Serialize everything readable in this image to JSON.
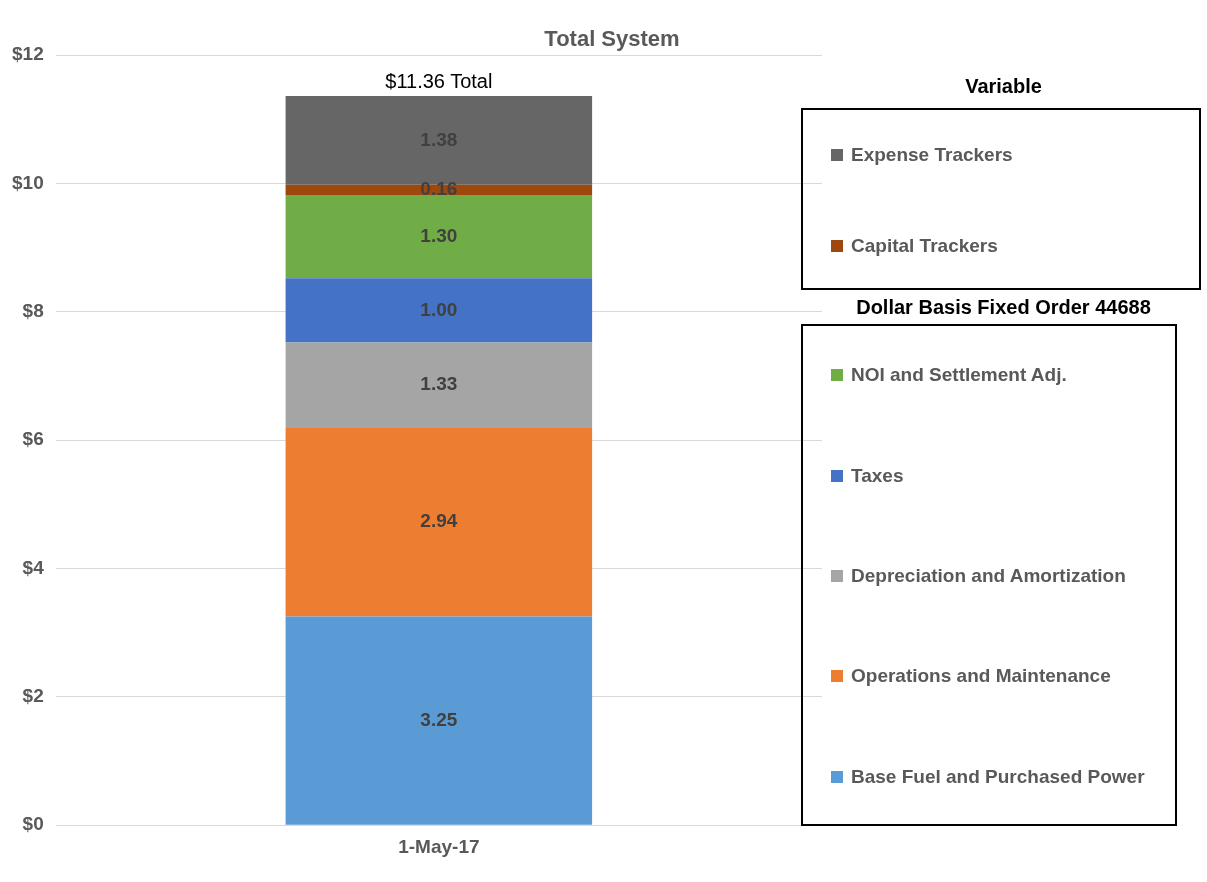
{
  "chart_data": {
    "type": "bar",
    "title": "Total System",
    "categories": [
      "1-May-17"
    ],
    "stacked": true,
    "series": [
      {
        "name": "Base Fuel and Purchased Power",
        "color": "#5b9bd5",
        "values": [
          3.25
        ],
        "value_labels": [
          "3.25"
        ]
      },
      {
        "name": "Operations and Maintenance",
        "color": "#ed7d31",
        "values": [
          2.94
        ],
        "value_labels": [
          "2.94"
        ]
      },
      {
        "name": "Depreciation and Amortization",
        "color": "#a5a5a5",
        "values": [
          1.33
        ],
        "value_labels": [
          "1.33"
        ]
      },
      {
        "name": "Taxes",
        "color": "#4472c4",
        "values": [
          1.0
        ],
        "value_labels": [
          "1.00"
        ]
      },
      {
        "name": "NOI and Settlement Adj.",
        "color": "#70ad47",
        "values": [
          1.3
        ],
        "value_labels": [
          "1.30"
        ]
      },
      {
        "name": "Capital Trackers",
        "color": "#9e480e",
        "values": [
          0.16
        ],
        "value_labels": [
          "0.16"
        ]
      },
      {
        "name": "Expense Trackers",
        "color": "#666666",
        "values": [
          1.38
        ],
        "value_labels": [
          "1.38"
        ]
      }
    ],
    "totals": [
      "$11.36 Total"
    ],
    "ylim": [
      0,
      12
    ],
    "yticks": [
      {
        "value": 0,
        "label": "$0"
      },
      {
        "value": 2,
        "label": "$2"
      },
      {
        "value": 4,
        "label": "$4"
      },
      {
        "value": 6,
        "label": "$6"
      },
      {
        "value": 8,
        "label": "$8"
      },
      {
        "value": 10,
        "label": "$10"
      },
      {
        "value": 12,
        "label": "$12"
      }
    ],
    "grid": "y",
    "legend": "right",
    "legend_title": "Variable",
    "annotations": [
      "Dollar Basis Fixed Order 44688"
    ]
  }
}
